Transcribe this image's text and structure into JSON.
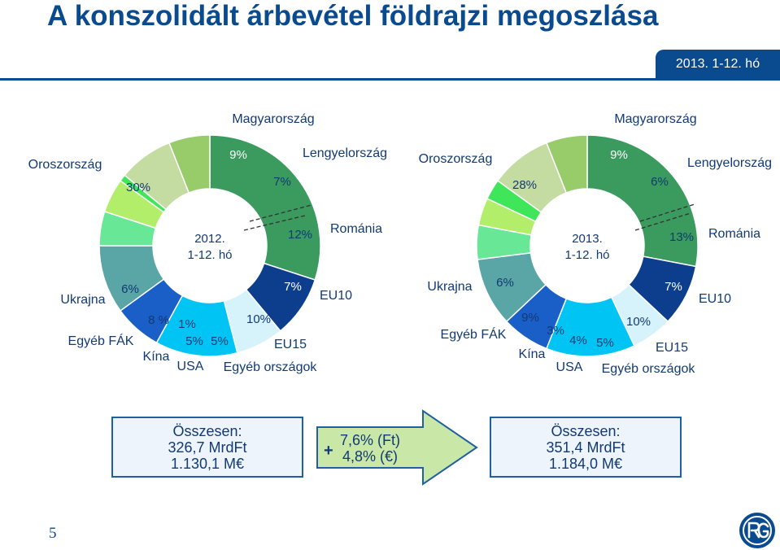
{
  "title": "A konszolidált árbevétel földrajzi megoszlása",
  "period_badge": "2013. 1-12. hó",
  "page_number": "5",
  "colors": {
    "brand": "#0a4a8f",
    "Oroszország": "#3b9a5e",
    "Magyarország": "#0d3e8e",
    "Lengyelország": "#d6f3fb",
    "Románia": "#00c5f4",
    "EU10": "#1a5ec8",
    "EU15": "#5aa5a6",
    "Egyéb országok": "#68e896",
    "USA": "#b2ee6a",
    "Kína": "#3fe65a",
    "Egyéb FÁK": "#c4dba2",
    "Ukrajna": "#98cb6a"
  },
  "chart_data": [
    {
      "type": "pie",
      "center_label": [
        "2012.",
        "1-12. hó"
      ],
      "categories": [
        "Oroszország",
        "Magyarország",
        "Lengyelország",
        "Románia",
        "EU10",
        "EU15",
        "Egyéb országok",
        "USA",
        "Kína",
        "Egyéb FÁK",
        "Ukrajna"
      ],
      "values": [
        30,
        9,
        7,
        12,
        7,
        10,
        5,
        5,
        1,
        8,
        6
      ],
      "value_labels": [
        "30%",
        "9%",
        "7%",
        "12%",
        "7%",
        "10%",
        "5%",
        "5%",
        "1%",
        "8 %",
        "6%"
      ]
    },
    {
      "type": "pie",
      "center_label": [
        "2013.",
        "1-12. hó"
      ],
      "categories": [
        "Oroszország",
        "Magyarország",
        "Lengyelország",
        "Románia",
        "EU10",
        "EU15",
        "Egyéb országok",
        "USA",
        "Kína",
        "Egyéb FÁK",
        "Ukrajna"
      ],
      "values": [
        28,
        9,
        6,
        13,
        7,
        10,
        5,
        4,
        3,
        9,
        6
      ],
      "value_labels": [
        "28%",
        "9%",
        "6%",
        "13%",
        "7%",
        "10%",
        "5%",
        "4%",
        "3%",
        "9%",
        "6%"
      ]
    }
  ],
  "summary_left": {
    "line1": "Összesen:",
    "line2": "326,7 MrdFt",
    "line3": "1.130,1 M€"
  },
  "growth": {
    "plus": "+",
    "line1": "7,6% (Ft)",
    "line2": "4,8% (€)"
  },
  "summary_right": {
    "line1": "Összesen:",
    "line2": "351,4 MrdFt",
    "line3": "1.184,0 M€"
  }
}
